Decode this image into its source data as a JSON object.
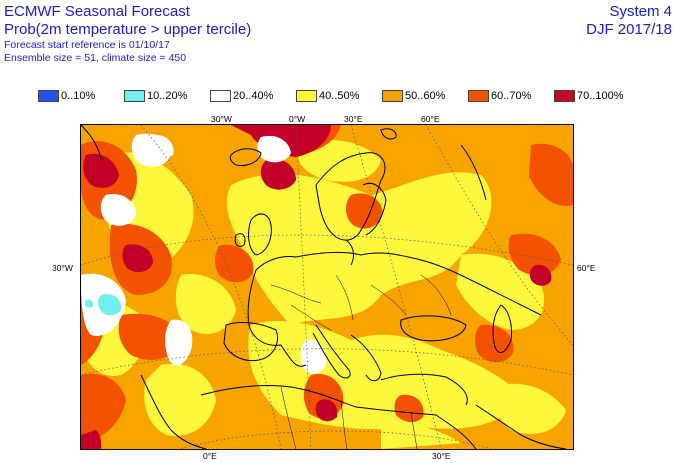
{
  "header": {
    "title": "ECMWF Seasonal Forecast",
    "subtitle": "Prob(2m temperature > upper tercile)",
    "start_reference": "Forecast start reference is 01/10/17",
    "ensemble": "Ensemble size = 51, climate size = 450",
    "system": "System 4",
    "period": "DJF 2017/18"
  },
  "legend": [
    {
      "label": "0..10%",
      "color": "#2750f0"
    },
    {
      "label": "10..20%",
      "color": "#70f0f0"
    },
    {
      "label": "20..40%",
      "color": "#ffffff"
    },
    {
      "label": "40..50%",
      "color": "#fcf73c"
    },
    {
      "label": "50..60%",
      "color": "#f7a400"
    },
    {
      "label": "60..70%",
      "color": "#f35200"
    },
    {
      "label": "70..100%",
      "color": "#c20028"
    }
  ],
  "map": {
    "top_labels": [
      "30°W",
      "0°W",
      "30°E",
      "60°E"
    ],
    "bottom_labels": [
      "0°E",
      "30°E"
    ],
    "left_label": "30°W",
    "right_label": "60°E"
  }
}
